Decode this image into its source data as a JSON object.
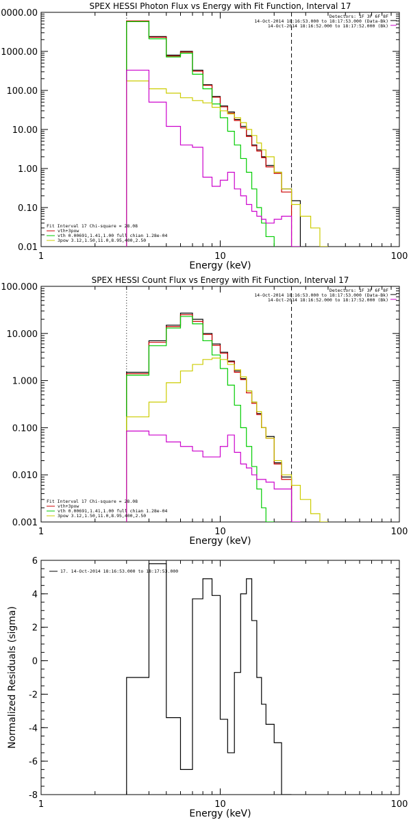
{
  "chart_data": [
    {
      "type": "line",
      "title": "SPEX HESSI Photon Flux vs Energy with Fit Function, Interval 17",
      "xlabel": "Energy (keV)",
      "ylabel": "",
      "xscale": "log",
      "yscale": "log",
      "xlim": [
        1,
        100
      ],
      "ylim": [
        0.01,
        10000
      ],
      "x_ticks": [
        1,
        10,
        100
      ],
      "x_tick_labels": [
        "1",
        "10",
        "100"
      ],
      "y_ticks": [
        0.01,
        0.1,
        1,
        10,
        100,
        1000,
        10000
      ],
      "y_tick_labels": [
        "0.01",
        "0.10",
        "1.00",
        "10.00",
        "100.00",
        "1000.00",
        "10000.00"
      ],
      "info_lines": [
        {
          "text": "Detectors: 1F 3F 6F 8F",
          "color": "#000000"
        },
        {
          "text": "14-Oct-2014 18:16:53.000 to 18:17:53.000 (Data-Bk)",
          "color": "#000000"
        },
        {
          "text": "14-Oct-2014 18:16:52.000 to 18:17:52.000 (Bk)",
          "color": "#cc00cc"
        }
      ],
      "legend": [
        {
          "text": "Fit Interval 17    Chi-square = 28.08",
          "color": "#000000"
        },
        {
          "text": "vth+3pow",
          "color": "#cc0000"
        },
        {
          "text": "vth 0.00691,1.41,1.00  full chian 1.28e-04",
          "color": "#00cc00"
        },
        {
          "text": "3pow 3.12,1.50,11.0,8.95,400,2.50",
          "color": "#cccc00"
        }
      ],
      "vlines": [
        {
          "x": 3,
          "style": "dotted",
          "color": "#000000"
        },
        {
          "x": 25,
          "style": "dashed",
          "color": "#000000"
        }
      ],
      "edges": [
        3,
        4,
        5,
        6,
        7,
        8,
        9,
        10,
        11,
        12,
        13,
        14,
        15,
        16,
        17,
        18,
        20,
        22,
        25,
        28,
        32,
        36,
        40
      ],
      "series": [
        {
          "color": "#000000",
          "values": [
            6000,
            2400,
            800,
            1000,
            330,
            140,
            70,
            40,
            28,
            18,
            12,
            7,
            4,
            3,
            2,
            1.2,
            0.8,
            0.3,
            0.15,
            null,
            null,
            null
          ]
        },
        {
          "color": "#cc0000",
          "values": [
            6000,
            2300,
            760,
            960,
            310,
            135,
            67,
            38,
            26,
            17,
            11,
            6.6,
            3.8,
            2.8,
            1.9,
            1.1,
            0.75,
            0.25,
            null,
            null,
            null,
            null
          ]
        },
        {
          "color": "#00cc00",
          "values": [
            5800,
            2100,
            720,
            900,
            260,
            110,
            45,
            20,
            9,
            4,
            1.8,
            0.8,
            0.3,
            0.1,
            0.04,
            0.018,
            null,
            null,
            null,
            null,
            null,
            null
          ]
        },
        {
          "color": "#cccc00",
          "values": [
            175,
            110,
            85,
            65,
            55,
            48,
            37,
            30,
            25,
            20,
            15,
            10,
            7,
            4.5,
            3,
            2,
            0.8,
            0.3,
            0.12,
            0.06,
            0.03,
            0.01
          ]
        },
        {
          "color": "#cc00cc",
          "values": [
            330,
            50,
            12,
            4,
            3.5,
            0.6,
            0.35,
            0.5,
            0.8,
            0.3,
            0.2,
            0.12,
            0.08,
            0.06,
            0.05,
            0.04,
            0.05,
            0.06,
            0.01,
            null,
            null,
            null
          ]
        }
      ]
    },
    {
      "type": "line",
      "title": "SPEX HESSI Count Flux vs Energy with Fit Function, Interval 17",
      "xlabel": "Energy (keV)",
      "ylabel": "",
      "xscale": "log",
      "yscale": "log",
      "xlim": [
        1,
        100
      ],
      "ylim": [
        0.001,
        100
      ],
      "x_ticks": [
        1,
        10,
        100
      ],
      "x_tick_labels": [
        "1",
        "10",
        "100"
      ],
      "y_ticks": [
        0.001,
        0.01,
        0.1,
        1,
        10,
        100
      ],
      "y_tick_labels": [
        "0.001",
        "0.010",
        "0.100",
        "1.000",
        "10.000",
        "100.000"
      ],
      "info_lines": [
        {
          "text": "Detectors: 1F 3F 6F 8F",
          "color": "#000000"
        },
        {
          "text": "14-Oct-2014 18:16:53.000 to 18:17:53.000 (Data-Bk)",
          "color": "#000000"
        },
        {
          "text": "14-Oct-2014 18:16:52.000 to 18:17:52.000 (Bk)",
          "color": "#cc00cc"
        }
      ],
      "legend": [
        {
          "text": "Fit Interval 17    Chi-square = 28.08",
          "color": "#000000"
        },
        {
          "text": "vth+3pow",
          "color": "#cc0000"
        },
        {
          "text": "vth 0.00691,1.41,1.00  full chian 1.28e-04",
          "color": "#00cc00"
        },
        {
          "text": "3pow 3.12,1.50,11.0,8.95,400,2.50",
          "color": "#cccc00"
        }
      ],
      "vlines": [
        {
          "x": 3,
          "style": "dotted",
          "color": "#000000"
        },
        {
          "x": 25,
          "style": "dashed",
          "color": "#000000"
        }
      ],
      "edges": [
        3,
        4,
        5,
        6,
        7,
        8,
        9,
        10,
        11,
        12,
        13,
        14,
        15,
        16,
        17,
        18,
        20,
        22,
        25,
        28,
        32,
        36,
        40
      ],
      "series": [
        {
          "color": "#000000",
          "values": [
            1.5,
            7,
            15,
            27,
            20,
            10,
            6,
            4,
            2.6,
            1.6,
            1.1,
            0.6,
            0.35,
            0.2,
            0.1,
            0.065,
            0.018,
            0.009,
            null,
            null,
            null,
            null
          ]
        },
        {
          "color": "#cc0000",
          "values": [
            1.4,
            6.5,
            14,
            25,
            18,
            9.5,
            5.6,
            3.8,
            2.5,
            1.5,
            1.05,
            0.55,
            0.33,
            0.19,
            0.1,
            0.06,
            0.017,
            0.008,
            null,
            null,
            null,
            null
          ]
        },
        {
          "color": "#00cc00",
          "values": [
            1.3,
            5.5,
            13,
            23,
            16,
            7,
            3.5,
            1.8,
            0.8,
            0.3,
            0.1,
            0.04,
            0.015,
            0.005,
            0.002,
            0.001,
            null,
            null,
            null,
            null,
            null,
            null
          ]
        },
        {
          "color": "#cccc00",
          "values": [
            0.17,
            0.35,
            0.9,
            1.6,
            2.2,
            2.8,
            3.0,
            2.8,
            2.2,
            1.7,
            1.2,
            0.6,
            0.35,
            0.22,
            0.1,
            0.06,
            0.02,
            0.01,
            0.006,
            0.003,
            0.0015,
            0.001
          ]
        },
        {
          "color": "#cc00cc",
          "values": [
            0.085,
            0.07,
            0.05,
            0.04,
            0.032,
            0.024,
            0.024,
            0.04,
            0.07,
            0.03,
            0.017,
            0.014,
            0.01,
            0.008,
            0.008,
            0.007,
            0.005,
            0.005,
            0.001,
            null,
            null,
            null
          ]
        }
      ]
    },
    {
      "type": "line",
      "title": "",
      "xlabel": "Energy (keV)",
      "ylabel": "Normalized Residuals (sigma)",
      "xscale": "log",
      "yscale": "linear",
      "xlim": [
        1,
        100
      ],
      "ylim": [
        -8,
        6
      ],
      "x_ticks": [
        1,
        10,
        100
      ],
      "x_tick_labels": [
        "1",
        "10",
        "100"
      ],
      "y_ticks": [
        -8,
        -6,
        -4,
        -2,
        0,
        2,
        4,
        6
      ],
      "y_tick_labels": [
        "-8",
        "-6",
        "-4",
        "-2",
        "0",
        "2",
        "4",
        "6"
      ],
      "legend": [
        {
          "text": "17. 14-Oct-2014 18:16:53.000 to 18:17:53.000",
          "color": "#000000"
        }
      ],
      "edges": [
        3,
        4,
        5,
        6,
        7,
        8,
        9,
        10,
        11,
        12,
        13,
        14,
        15,
        16,
        17,
        18,
        20,
        22,
        25
      ],
      "series": [
        {
          "color": "#000000",
          "values": [
            -1,
            5.8,
            -3.4,
            -6.5,
            3.7,
            4.9,
            3.9,
            -3.5,
            -5.5,
            -0.7,
            4.0,
            4.9,
            2.4,
            -1.0,
            -2.6,
            -3.8,
            -4.9,
            -8.0
          ]
        }
      ]
    }
  ]
}
